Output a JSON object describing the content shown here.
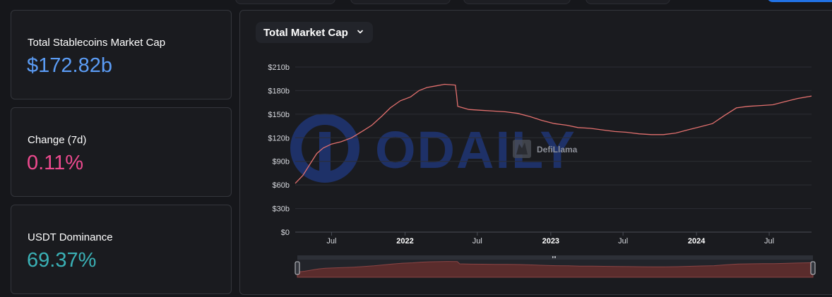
{
  "stats": [
    {
      "label": "Total Stablecoins Market Cap",
      "value": "$172.82b",
      "color": "#5b9cf5"
    },
    {
      "label": "Change (7d)",
      "value": "0.11%",
      "color": "#ee4a8f"
    },
    {
      "label": "USDT Dominance",
      "value": "69.37%",
      "color": "#3ab1b6"
    }
  ],
  "chart_select": {
    "label": "Total Market Cap",
    "icon": "chevron-down-icon"
  },
  "watermarks": {
    "brand": "ODAILY",
    "source": "DefiLlama"
  },
  "colors": {
    "line": "#e3706e",
    "grid": "#2c2e34",
    "brush_fill": "#5a2c2c",
    "watermark": "#1f3470"
  },
  "chart_data": {
    "type": "line",
    "title": "",
    "xlabel": "",
    "ylabel": "",
    "ylim": [
      0,
      210
    ],
    "y_unit": "billion USD",
    "y_ticks": [
      {
        "value": 0,
        "label": "$0"
      },
      {
        "value": 30,
        "label": "$30b"
      },
      {
        "value": 60,
        "label": "$60b"
      },
      {
        "value": 90,
        "label": "$90b"
      },
      {
        "value": 120,
        "label": "$120b"
      },
      {
        "value": 150,
        "label": "$150b"
      },
      {
        "value": 180,
        "label": "$180b"
      },
      {
        "value": 210,
        "label": "$210b"
      }
    ],
    "xlim": [
      "2021-04-01",
      "2024-10-15"
    ],
    "x_ticks": [
      {
        "date": "2021-07-01",
        "label": "Jul",
        "bold": false
      },
      {
        "date": "2022-01-01",
        "label": "2022",
        "bold": true
      },
      {
        "date": "2022-07-01",
        "label": "Jul",
        "bold": false
      },
      {
        "date": "2023-01-01",
        "label": "2023",
        "bold": true
      },
      {
        "date": "2023-07-01",
        "label": "Jul",
        "bold": false
      },
      {
        "date": "2024-01-01",
        "label": "2024",
        "bold": true
      },
      {
        "date": "2024-07-01",
        "label": "Jul",
        "bold": false
      }
    ],
    "grid": true,
    "series": [
      {
        "points": [
          [
            "2021-04-01",
            62
          ],
          [
            "2021-04-20",
            72
          ],
          [
            "2021-05-10",
            88
          ],
          [
            "2021-05-25",
            100
          ],
          [
            "2021-06-10",
            107
          ],
          [
            "2021-07-01",
            112
          ],
          [
            "2021-07-25",
            115
          ],
          [
            "2021-08-20",
            120
          ],
          [
            "2021-09-15",
            128
          ],
          [
            "2021-10-10",
            136
          ],
          [
            "2021-11-05",
            148
          ],
          [
            "2021-11-25",
            158
          ],
          [
            "2021-12-20",
            167
          ],
          [
            "2022-01-15",
            172
          ],
          [
            "2022-02-05",
            180
          ],
          [
            "2022-02-25",
            184
          ],
          [
            "2022-03-20",
            186
          ],
          [
            "2022-04-10",
            188
          ],
          [
            "2022-05-07",
            187
          ],
          [
            "2022-05-10",
            175
          ],
          [
            "2022-05-13",
            160
          ],
          [
            "2022-06-10",
            156
          ],
          [
            "2022-07-10",
            155
          ],
          [
            "2022-08-10",
            154
          ],
          [
            "2022-09-10",
            153
          ],
          [
            "2022-10-10",
            151
          ],
          [
            "2022-11-10",
            147
          ],
          [
            "2022-12-10",
            142
          ],
          [
            "2023-01-10",
            138
          ],
          [
            "2023-02-10",
            136
          ],
          [
            "2023-03-10",
            133
          ],
          [
            "2023-04-10",
            132
          ],
          [
            "2023-05-10",
            130
          ],
          [
            "2023-06-10",
            128
          ],
          [
            "2023-07-10",
            127
          ],
          [
            "2023-08-10",
            125
          ],
          [
            "2023-09-10",
            124
          ],
          [
            "2023-10-10",
            124
          ],
          [
            "2023-11-10",
            126
          ],
          [
            "2023-12-10",
            130
          ],
          [
            "2024-01-10",
            134
          ],
          [
            "2024-02-10",
            138
          ],
          [
            "2024-03-10",
            148
          ],
          [
            "2024-04-10",
            158
          ],
          [
            "2024-05-10",
            160
          ],
          [
            "2024-06-10",
            161
          ],
          [
            "2024-07-10",
            162
          ],
          [
            "2024-08-10",
            166
          ],
          [
            "2024-09-10",
            170
          ],
          [
            "2024-10-15",
            173
          ]
        ]
      }
    ]
  }
}
